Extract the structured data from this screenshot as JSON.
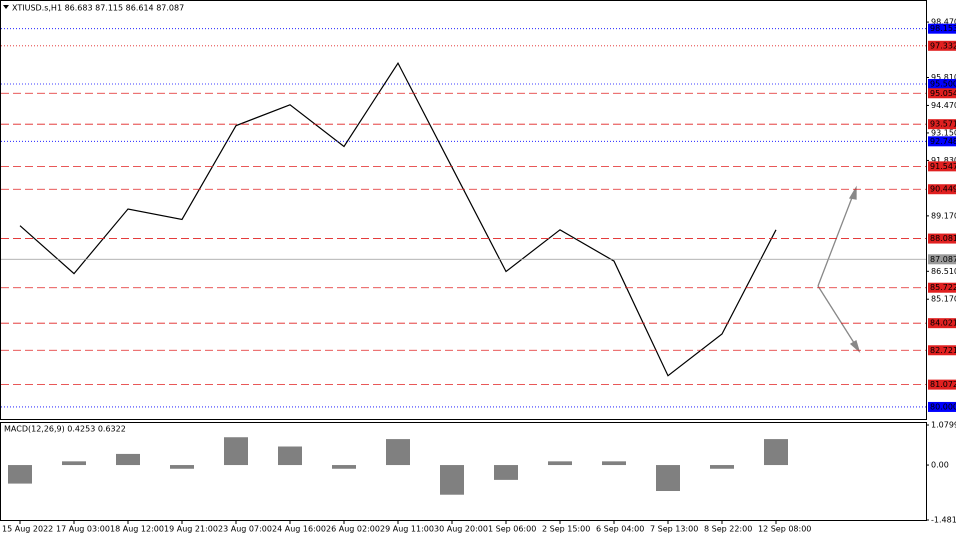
{
  "chart_data": [
    {
      "type": "line",
      "title": "XTIUSD.s,H1  86.683 87.115 86.614 87.087",
      "categories": [
        "15 Aug 2022",
        "17 Aug 03:00",
        "18 Aug 12:00",
        "19 Aug 21:00",
        "23 Aug 07:00",
        "24 Aug 16:00",
        "26 Aug 02:00",
        "29 Aug 11:00",
        "30 Aug 20:00",
        "1 Sep 06:00",
        "2 Sep 15:00",
        "6 Sep 04:00",
        "7 Sep 13:00",
        "8 Sep 22:00",
        "12 Sep 08:00"
      ],
      "values": [
        88.7,
        86.4,
        89.5,
        89.0,
        93.5,
        94.5,
        92.5,
        96.5,
        91.5,
        86.5,
        88.5,
        87.0,
        81.5,
        83.5,
        88.5
      ],
      "color": "#000000",
      "ylim": [
        79.47,
        99.29
      ],
      "yticks": [
        {
          "value": 98.47,
          "label": "98.470"
        },
        {
          "value": 95.81,
          "label": "95.810"
        },
        {
          "value": 94.47,
          "label": "94.470"
        },
        {
          "value": 93.15,
          "label": "93.150"
        },
        {
          "value": 91.83,
          "label": "91.830"
        },
        {
          "value": 89.17,
          "label": "89.170"
        },
        {
          "value": 86.51,
          "label": "86.510"
        },
        {
          "value": 85.17,
          "label": "85.170"
        }
      ],
      "levels": [
        {
          "value": 98.153,
          "color": "#0000ff",
          "style": "dotted"
        },
        {
          "value": 97.332,
          "color": "#e02020",
          "style": "dotted"
        },
        {
          "value": 95.5,
          "label": "95.500",
          "color": "#0000ff",
          "style": "dotted"
        },
        {
          "value": 95.054,
          "color": "#e02020",
          "style": "dashed"
        },
        {
          "value": 93.571,
          "color": "#e02020",
          "style": "dashed"
        },
        {
          "value": 92.748,
          "color": "#0000ff",
          "style": "dotted"
        },
        {
          "value": 91.547,
          "color": "#e02020",
          "style": "dashed"
        },
        {
          "value": 90.449,
          "color": "#e02020",
          "style": "dashed"
        },
        {
          "value": 88.081,
          "color": "#e02020",
          "style": "dashed"
        },
        {
          "value": 87.087,
          "color": "#9a9a9a",
          "style": "solid"
        },
        {
          "value": 85.722,
          "color": "#e02020",
          "style": "dashed"
        },
        {
          "value": 84.021,
          "color": "#e02020",
          "style": "dashed"
        },
        {
          "value": 82.721,
          "color": "#e02020",
          "style": "dashed"
        },
        {
          "value": 81.072,
          "color": "#e02020",
          "style": "dashed"
        },
        {
          "value": 80,
          "label": "80.000",
          "color": "#0000ff",
          "style": "dotted"
        }
      ]
    },
    {
      "type": "bar",
      "title": "MACD(12,26,9) 0.4253 0.6322",
      "values": [
        -0.5,
        0.1,
        0.3,
        -0.1,
        0.75,
        0.5,
        -0.1,
        0.7,
        -0.8,
        -0.4,
        0.1,
        0.1,
        -0.7,
        -0.1,
        0.7
      ],
      "color": "#808080",
      "ylim": [
        -1.4818,
        1.0799
      ],
      "yticks": [
        1.0799,
        {
          "value": 0,
          "label": "0.00"
        },
        -1.4818
      ]
    }
  ]
}
